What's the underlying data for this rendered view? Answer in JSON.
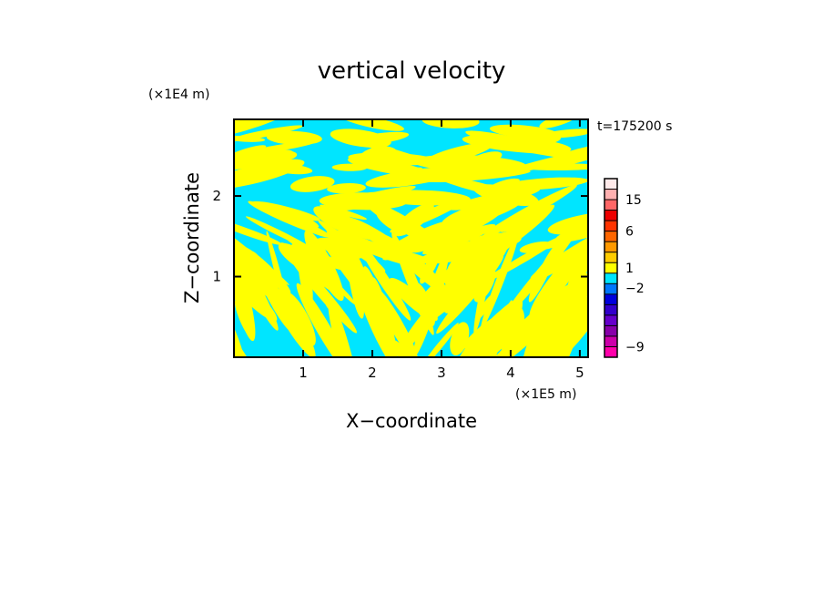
{
  "chart_data": {
    "type": "heatmap",
    "title": "vertical velocity",
    "xlabel": "X−coordinate",
    "ylabel": "Z−coordinate",
    "x_unit": "(×1E5 m)",
    "y_unit": "(×1E4 m)",
    "time_label": "t=175200 s",
    "xlim": [
      0,
      5.12
    ],
    "ylim": [
      0,
      2.95
    ],
    "x_ticks": [
      {
        "value": 1,
        "label": "1"
      },
      {
        "value": 2,
        "label": "2"
      },
      {
        "value": 3,
        "label": "3"
      },
      {
        "value": 4,
        "label": "4"
      },
      {
        "value": 5,
        "label": "5"
      }
    ],
    "y_ticks": [
      {
        "value": 1,
        "label": "1"
      },
      {
        "value": 2,
        "label": "2"
      }
    ],
    "pattern_colors": {
      "positive": "#ffff00",
      "negative": "#00e5ff"
    },
    "colorbar": {
      "levels": [
        {
          "color": "#ff00aa"
        },
        {
          "color": "#cc00aa"
        },
        {
          "color": "#8800aa"
        },
        {
          "color": "#6600cc"
        },
        {
          "color": "#3300cc"
        },
        {
          "color": "#0000dd"
        },
        {
          "color": "#0077ff"
        },
        {
          "color": "#00e5ff"
        },
        {
          "color": "#ffff00"
        },
        {
          "color": "#ffcc00"
        },
        {
          "color": "#ff9900"
        },
        {
          "color": "#ff6600"
        },
        {
          "color": "#ff3300"
        },
        {
          "color": "#ee0000"
        },
        {
          "color": "#ff6666"
        },
        {
          "color": "#ffb0b0"
        },
        {
          "color": "#ffeaea"
        }
      ],
      "labels": [
        {
          "text": "15",
          "level_index": 15
        },
        {
          "text": "6",
          "level_index": 12
        },
        {
          "text": "1",
          "level_index": 8.5
        },
        {
          "text": "−2",
          "level_index": 6.6
        },
        {
          "text": "−9",
          "level_index": 1
        }
      ]
    }
  }
}
